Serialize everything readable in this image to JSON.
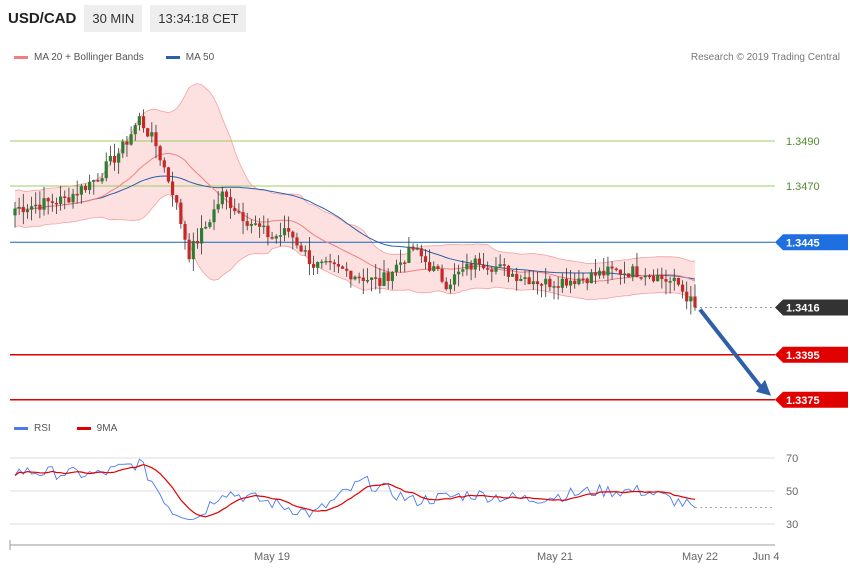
{
  "header": {
    "symbol": "USD/CAD",
    "timeframe": "30 MIN",
    "time": "13:34:18 CET"
  },
  "legend": {
    "ma20_label": "MA 20 + Bollinger Bands",
    "ma50_label": "MA 50",
    "rsi_label": "RSI",
    "ma9_label": "9MA"
  },
  "credit": "Research © 2019 Trading Central",
  "colors": {
    "bull": "#2e7d32",
    "bear": "#c62828",
    "band": "#fde1e1",
    "ma20": "#f08080",
    "ma50": "#2e5fa8",
    "green_level": "#9ccc65",
    "blue_level": "#1565c0",
    "red_level": "#e00000",
    "arrow": "#2e5fa8",
    "rsi": "#4b7bec",
    "ma9": "#e00000"
  },
  "chart_data": [
    {
      "type": "candlestick",
      "title": "",
      "y_axis_side": "right",
      "levels": [
        {
          "value": 1.349,
          "label": "1.3490",
          "style": "green"
        },
        {
          "value": 1.347,
          "label": "1.3470",
          "style": "green"
        },
        {
          "value": 1.3445,
          "label": "1.3445",
          "style": "blue-tag"
        },
        {
          "value": 1.3416,
          "label": "1.3416",
          "style": "current-price"
        },
        {
          "value": 1.3395,
          "label": "1.3395",
          "style": "red-tag"
        },
        {
          "value": 1.3375,
          "label": "1.3375",
          "style": "red-tag"
        }
      ],
      "x_tick_labels": [
        "May 19",
        "May 21",
        "May 22",
        "Jun 4"
      ],
      "forecast_arrow": {
        "from": 1.3416,
        "to": 1.3375
      },
      "price_range": [
        1.3372,
        1.3512
      ]
    },
    {
      "type": "line",
      "title": "",
      "series_names": [
        "RSI",
        "9MA"
      ],
      "y_ticks": [
        70,
        50,
        30
      ],
      "ylim": [
        24,
        82
      ],
      "rsi_start": 62,
      "rsi_end": 40,
      "ma9_end": 45
    }
  ]
}
